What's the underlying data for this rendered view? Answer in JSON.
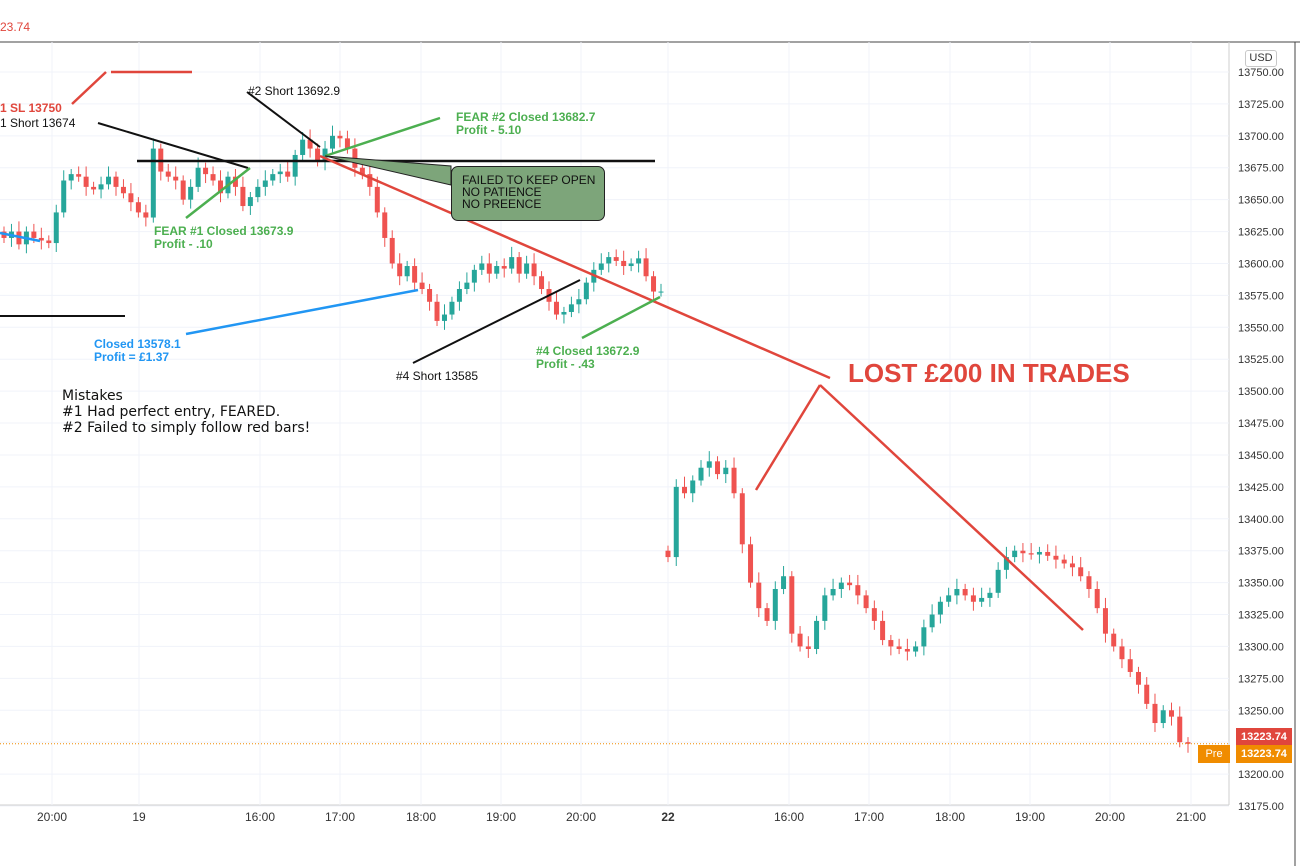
{
  "header": {
    "last_price_partial": "23.74",
    "currency": "USD"
  },
  "price_tags": {
    "last": "13223.74",
    "pre_label": "Pre",
    "pre_value": "13223.74"
  },
  "annotations": {
    "sl": "1 SL 13750",
    "short1": "1 Short 13674",
    "short2": "#2 Short 13692.9",
    "fear2_title": "FEAR #2 Closed 13682.7",
    "fear2_profit": "Profit - 5.10",
    "fear1_title": "FEAR #1 Closed 13673.9",
    "fear1_profit": "Profit - .10",
    "closed3_title": "Closed 13578.1",
    "closed3_profit": "Profit = £1.37",
    "short4": "#4 Short 13585",
    "closed4_title": "#4 Closed 13672.9",
    "closed4_profit": "Profit - .43",
    "callout": [
      "FAILED TO KEEP OPEN",
      "NO PATIENCE",
      "NO PREENCE"
    ],
    "lost": "LOST £200 IN TRADES"
  },
  "mistakes": {
    "title": "Mistakes",
    "items": [
      "#1  Had perfect entry, FEARED.",
      "#2  Failed to simply follow red bars!"
    ]
  },
  "colors": {
    "up": "#26a69a",
    "down": "#ef5350",
    "red_line": "#e0463c",
    "green_line": "#4caf50",
    "blue_line": "#2196f3"
  },
  "chart_data": {
    "type": "candlestick",
    "y_axis": {
      "min": 13175,
      "max": 13750,
      "ticks": [
        "13750.00",
        "13725.00",
        "13700.00",
        "13675.00",
        "13650.00",
        "13625.00",
        "13600.00",
        "13575.00",
        "13550.00",
        "13525.00",
        "13500.00",
        "13475.00",
        "13450.00",
        "13425.00",
        "13400.00",
        "13375.00",
        "13350.00",
        "13325.00",
        "13300.00",
        "13275.00",
        "13250.00",
        "13225.00",
        "13200.00",
        "13175.00"
      ]
    },
    "x_axis": {
      "labels": [
        {
          "label": "20:00",
          "bold": false
        },
        {
          "label": "19",
          "bold": false
        },
        {
          "label": "16:00",
          "bold": false
        },
        {
          "label": "17:00",
          "bold": false
        },
        {
          "label": "18:00",
          "bold": false
        },
        {
          "label": "19:00",
          "bold": false
        },
        {
          "label": "20:00",
          "bold": false
        },
        {
          "label": "22",
          "bold": true
        },
        {
          "label": "16:00",
          "bold": false
        },
        {
          "label": "17:00",
          "bold": false
        },
        {
          "label": "18:00",
          "bold": false
        },
        {
          "label": "19:00",
          "bold": false
        },
        {
          "label": "20:00",
          "bold": false
        },
        {
          "label": "21:00",
          "bold": false
        }
      ]
    },
    "last_price": 13223.74,
    "session1_closes": [
      13620,
      13625,
      13615,
      13625,
      13620,
      13618,
      13616,
      13640,
      13665,
      13670,
      13668,
      13660,
      13658,
      13662,
      13668,
      13660,
      13655,
      13648,
      13640,
      13636,
      13690,
      13672,
      13668,
      13665,
      13650,
      13660,
      13675,
      13670,
      13665,
      13655,
      13668,
      13660,
      13645,
      13652,
      13660,
      13665,
      13670,
      13672,
      13668,
      13685,
      13697,
      13690,
      13680,
      13690,
      13700,
      13698,
      13690,
      13675,
      13670,
      13660,
      13640,
      13620,
      13600,
      13590,
      13598,
      13585,
      13580,
      13570,
      13555,
      13560,
      13570,
      13580,
      13585,
      13595,
      13600,
      13592,
      13598,
      13596,
      13605,
      13592,
      13600,
      13590,
      13580,
      13570,
      13560,
      13562,
      13568,
      13572,
      13585,
      13595,
      13600,
      13605,
      13602,
      13598,
      13600,
      13604,
      13590,
      13578,
      13578
    ],
    "session2_closes": [
      13370,
      13425,
      13420,
      13430,
      13440,
      13445,
      13435,
      13440,
      13420,
      13380,
      13350,
      13330,
      13320,
      13345,
      13355,
      13310,
      13300,
      13298,
      13320,
      13340,
      13345,
      13350,
      13348,
      13340,
      13330,
      13320,
      13305,
      13300,
      13298,
      13296,
      13300,
      13315,
      13325,
      13335,
      13340,
      13345,
      13340,
      13335,
      13338,
      13342,
      13360,
      13370,
      13375,
      13373,
      13372,
      13374,
      13371,
      13368,
      13365,
      13362,
      13355,
      13345,
      13330,
      13310,
      13300,
      13290,
      13280,
      13270,
      13255,
      13240,
      13250,
      13245,
      13225,
      13223.74
    ]
  }
}
